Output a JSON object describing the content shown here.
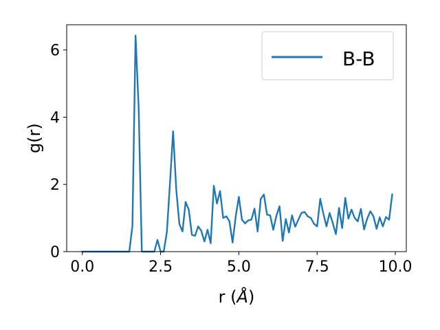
{
  "chart_data": {
    "type": "line",
    "xlabel_main": "r (",
    "xlabel_unit": "Å",
    "xlabel_close": ")",
    "ylabel": "g(r)",
    "xlim": [
      -0.5,
      10.35
    ],
    "ylim": [
      0,
      6.75
    ],
    "xticks": [
      0.0,
      2.5,
      5.0,
      7.5,
      10.0
    ],
    "xtick_labels": [
      "0.0",
      "2.5",
      "5.0",
      "7.5",
      "10.0"
    ],
    "yticks": [
      0,
      2,
      4,
      6
    ],
    "ytick_labels": [
      "0",
      "2",
      "4",
      "6"
    ],
    "grid": false,
    "legend_position": "top-right",
    "series": [
      {
        "name": "B-B",
        "color": "#1f77b4",
        "x": [
          0.0,
          0.1,
          0.2,
          0.3,
          0.4,
          0.5,
          0.6,
          0.7,
          0.8,
          0.9,
          1.0,
          1.1,
          1.2,
          1.3,
          1.4,
          1.5,
          1.6,
          1.7,
          1.8,
          1.9,
          2.0,
          2.1,
          2.2,
          2.3,
          2.4,
          2.5,
          2.6,
          2.7,
          2.8,
          2.9,
          3.0,
          3.1,
          3.2,
          3.3,
          3.4,
          3.5,
          3.6,
          3.7,
          3.8,
          3.9,
          4.0,
          4.1,
          4.2,
          4.3,
          4.4,
          4.5,
          4.6,
          4.7,
          4.8,
          4.9,
          5.0,
          5.1,
          5.2,
          5.3,
          5.4,
          5.5,
          5.6,
          5.7,
          5.8,
          5.9,
          6.0,
          6.1,
          6.2,
          6.3,
          6.4,
          6.5,
          6.6,
          6.7,
          6.8,
          6.9,
          7.0,
          7.1,
          7.2,
          7.3,
          7.4,
          7.5,
          7.6,
          7.7,
          7.8,
          7.9,
          8.0,
          8.1,
          8.2,
          8.3,
          8.4,
          8.5,
          8.6,
          8.7,
          8.8,
          8.9,
          9.0,
          9.1,
          9.2,
          9.3,
          9.4,
          9.5,
          9.6,
          9.7,
          9.8,
          9.9
        ],
        "y": [
          0,
          0,
          0,
          0,
          0,
          0,
          0,
          0,
          0,
          0,
          0,
          0,
          0,
          0,
          0,
          0,
          0.77,
          6.43,
          4.27,
          0,
          0,
          0,
          0,
          0,
          0.35,
          0,
          0,
          0.58,
          2.05,
          3.58,
          1.85,
          0.82,
          0.6,
          1.48,
          1.25,
          0.5,
          0.47,
          0.75,
          0.62,
          0.3,
          0.65,
          0.25,
          1.96,
          1.43,
          1.8,
          1.0,
          1.05,
          0.9,
          0.27,
          1.05,
          1.63,
          0.95,
          0.84,
          0.93,
          0.95,
          1.28,
          0.6,
          1.57,
          1.7,
          1.1,
          1.08,
          0.65,
          1.07,
          1.35,
          0.32,
          0.97,
          0.57,
          1.08,
          0.74,
          0.95,
          1.15,
          1.18,
          1.05,
          1.0,
          0.83,
          0.75,
          1.57,
          1.13,
          0.75,
          1.15,
          0.85,
          0.52,
          1.3,
          0.7,
          1.6,
          0.98,
          1.25,
          1.0,
          0.9,
          1.27,
          0.66,
          0.98,
          1.2,
          1.05,
          0.68,
          1.02,
          0.75,
          1.03,
          0.95,
          1.7
        ]
      }
    ]
  }
}
